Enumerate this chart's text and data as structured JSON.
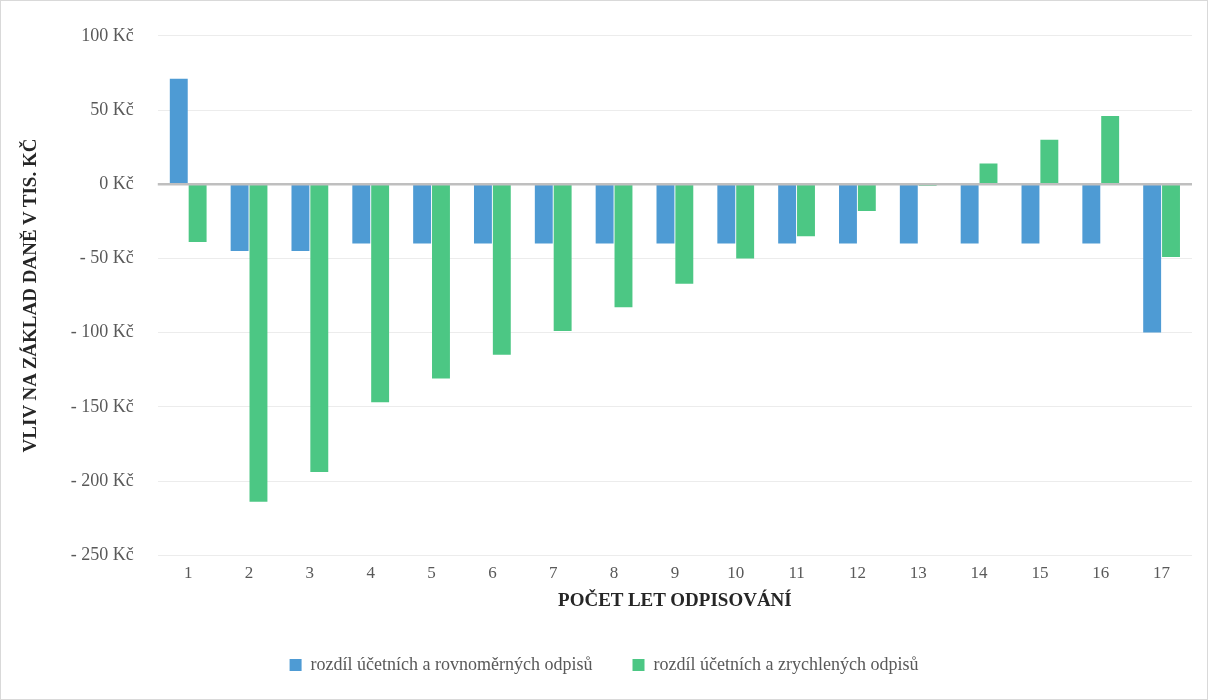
{
  "chart_data": {
    "type": "bar",
    "xlabel": "POČET LET ODPISOVÁNÍ",
    "ylabel": "VLIV NA ZÁKLAD DANĚ V TIS. KČ",
    "categories": [
      "1",
      "2",
      "3",
      "4",
      "5",
      "6",
      "7",
      "8",
      "9",
      "10",
      "11",
      "12",
      "13",
      "14",
      "15",
      "16",
      "17"
    ],
    "series": [
      {
        "name": "rozdíl účetních a rovnoměrných odpisů",
        "color": "#4e9bd4",
        "values": [
          71,
          -45,
          -45,
          -40,
          -40,
          -40,
          -40,
          -40,
          -40,
          -40,
          -40,
          -40,
          -40,
          -40,
          -40,
          -40,
          -100
        ]
      },
      {
        "name": "rozdíl účetních a zrychlených odpisů",
        "color": "#4cc784",
        "values": [
          -39,
          -214,
          -194,
          -147,
          -131,
          -115,
          -99,
          -83,
          -67,
          -50,
          -35,
          -18,
          -1,
          14,
          30,
          46,
          -49
        ]
      }
    ],
    "ylim": [
      -250,
      100
    ],
    "yticks": [
      {
        "value": -250,
        "label": "- 250 Kč"
      },
      {
        "value": -200,
        "label": "- 200 Kč"
      },
      {
        "value": -150,
        "label": "- 150 Kč"
      },
      {
        "value": -100,
        "label": "- 100 Kč"
      },
      {
        "value": -50,
        "label": "- 50 Kč"
      },
      {
        "value": 0,
        "label": "0 Kč"
      },
      {
        "value": 50,
        "label": "50 Kč"
      },
      {
        "value": 100,
        "label": "100 Kč"
      }
    ],
    "grid": "y",
    "legend": "bottom"
  }
}
